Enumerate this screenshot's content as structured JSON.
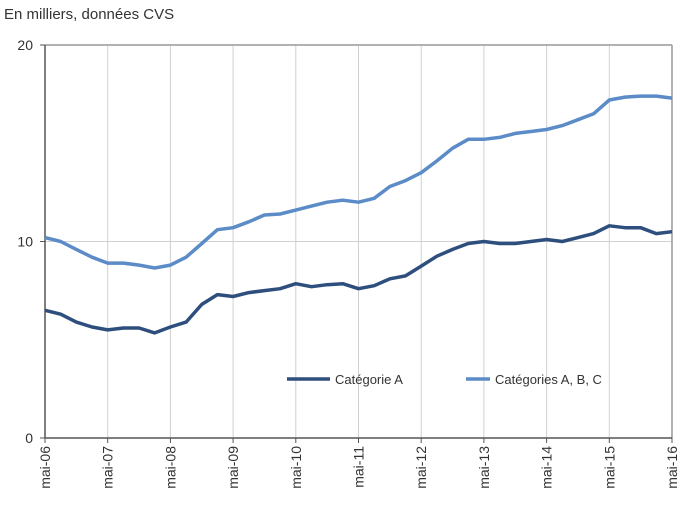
{
  "chart_data": {
    "type": "line",
    "title": "En milliers, données CVS",
    "xlabel": "",
    "ylabel": "",
    "ylim": [
      0,
      20
    ],
    "yticks": [
      "0",
      "10",
      "20"
    ],
    "xticks": [
      "mai-06",
      "mai-07",
      "mai-08",
      "mai-09",
      "mai-10",
      "mai-11",
      "mai-12",
      "mai-13",
      "mai-14",
      "mai-15",
      "mai-16"
    ],
    "x_unit": "months since mai-06 (quarterly samples)",
    "x": [
      0,
      3,
      6,
      9,
      12,
      15,
      18,
      21,
      24,
      27,
      30,
      33,
      36,
      39,
      42,
      45,
      48,
      51,
      54,
      57,
      60,
      63,
      66,
      69,
      72,
      75,
      78,
      81,
      84,
      87,
      90,
      93,
      96,
      99,
      102,
      105,
      108,
      111,
      114,
      117,
      120
    ],
    "grid": true,
    "legend_position": "center-bottom",
    "series": [
      {
        "name": "Catégorie A",
        "color": "#2e4f7e",
        "values": [
          6.5,
          6.3,
          5.9,
          5.65,
          5.5,
          5.6,
          5.6,
          5.35,
          5.65,
          5.9,
          6.8,
          7.3,
          7.2,
          7.4,
          7.5,
          7.6,
          7.85,
          7.7,
          7.8,
          7.85,
          7.6,
          7.75,
          8.1,
          8.25,
          8.75,
          9.25,
          9.6,
          9.9,
          10.0,
          9.9,
          9.9,
          10.0,
          10.1,
          10.0,
          10.2,
          10.4,
          10.8,
          10.7,
          10.7,
          10.4,
          10.5
        ]
      },
      {
        "name": "Catégories A, B, C",
        "color": "#5b8cc8",
        "values": [
          10.2,
          10.0,
          9.6,
          9.2,
          8.9,
          8.9,
          8.8,
          8.65,
          8.8,
          9.2,
          9.9,
          10.6,
          10.7,
          11.0,
          11.35,
          11.4,
          11.6,
          11.8,
          12.0,
          12.1,
          12.0,
          12.2,
          12.8,
          13.1,
          13.5,
          14.1,
          14.75,
          15.2,
          15.2,
          15.3,
          15.5,
          15.6,
          15.7,
          15.9,
          16.2,
          16.5,
          17.2,
          17.35,
          17.4,
          17.4,
          17.3
        ]
      }
    ]
  }
}
